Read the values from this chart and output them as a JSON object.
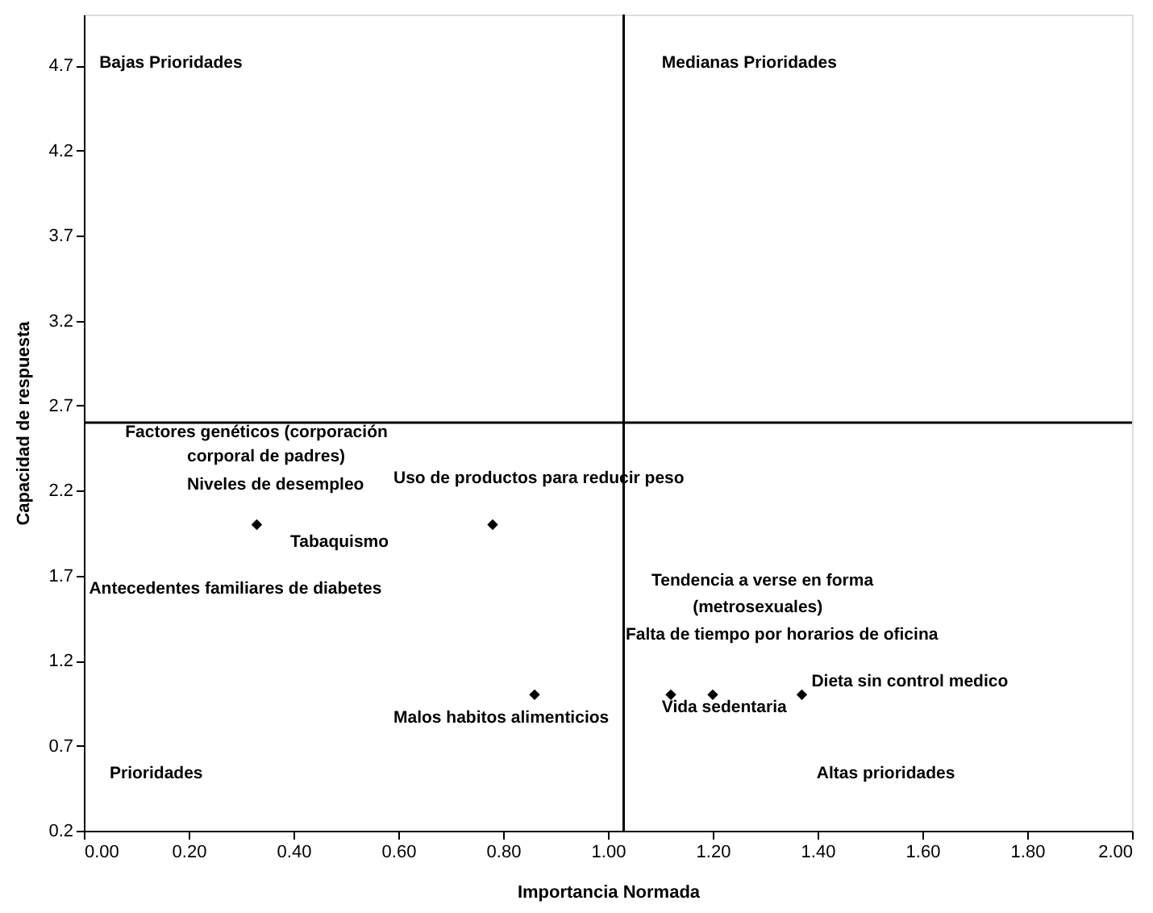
{
  "chart_data": {
    "type": "scatter",
    "xlabel": "Importancia Normada",
    "ylabel": "Capacidad de respuesta",
    "xlim": [
      0,
      2
    ],
    "ylim": [
      0.2,
      5.0
    ],
    "xticks": [
      {
        "value": 0,
        "label": "0.00"
      },
      {
        "value": 0.2,
        "label": "0.20"
      },
      {
        "value": 0.4,
        "label": "0.40"
      },
      {
        "value": 0.6,
        "label": "0.60"
      },
      {
        "value": 0.8,
        "label": "0.80"
      },
      {
        "value": 1,
        "label": "1.00"
      },
      {
        "value": 1.2,
        "label": "1.20"
      },
      {
        "value": 1.4,
        "label": "1.40"
      },
      {
        "value": 1.6,
        "label": "1.60"
      },
      {
        "value": 1.8,
        "label": "1.80"
      },
      {
        "value": 2,
        "label": "2.00"
      }
    ],
    "yticks": [
      0.2,
      0.7,
      1.2,
      1.7,
      2.2,
      2.7,
      3.2,
      3.7,
      4.2,
      4.7
    ],
    "grid": false,
    "marker": "diamond",
    "series": [
      {
        "color": "#000000",
        "x": [
          0.33,
          0.78,
          0.86,
          1.12,
          1.2,
          1.37
        ],
        "values": [
          2.0,
          2.0,
          1.0,
          1.0,
          1.0,
          1.0
        ]
      }
    ],
    "ref_lines": [
      {
        "axis": "x",
        "value": 1.03,
        "color": "#000000"
      },
      {
        "axis": "y",
        "value": 2.6,
        "color": "#000000"
      }
    ],
    "annotations": [
      "Bajas Prioridades",
      "Medianas Prioridades",
      "Prioridades",
      "Altas prioridades",
      "Factores genéticos (corporación",
      "corporal de padres)",
      "Niveles de desempleo",
      "Uso de productos para reducir peso",
      "Tabaquismo",
      "Antecedentes familiares de diabetes",
      "Tendencia a verse en forma",
      "(metrosexuales)",
      "Falta de tiempo por horarios de oficina",
      "Dieta sin control medico",
      "Vida sedentaria",
      "Malos habitos alimenticios"
    ]
  }
}
